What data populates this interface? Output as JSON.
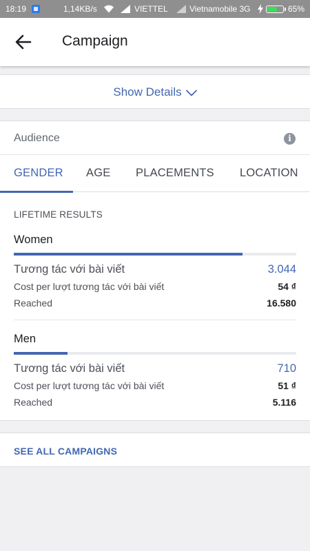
{
  "status_bar": {
    "time": "18:19",
    "speed": "1,14KB/s",
    "carrier1": "VIETTEL",
    "carrier2": "Vietnamobile 3G",
    "battery_pct": "65%",
    "battery_level": 0.65,
    "battery_color": "#3ddc5b"
  },
  "header": {
    "title": "Campaign",
    "back_icon": "arrow-left-icon"
  },
  "details": {
    "label": "Show Details",
    "icon": "chevron-down-icon"
  },
  "audience": {
    "title": "Audience",
    "info_icon": "info-icon",
    "tabs": [
      {
        "label": "GENDER",
        "active": true
      },
      {
        "label": "AGE",
        "active": false
      },
      {
        "label": "PLACEMENTS",
        "active": false
      },
      {
        "label": "LOCATION",
        "active": false
      }
    ],
    "section_label": "LIFETIME RESULTS",
    "groups": [
      {
        "name": "Women",
        "share": 0.81,
        "engagement_label": "Tương tác với bài viết",
        "engagement_value": "3.044",
        "cost_label": "Cost per lượt tương tác với bài viết",
        "cost_value": "54 ₫",
        "reached_label": "Reached",
        "reached_value": "16.580"
      },
      {
        "name": "Men",
        "share": 0.19,
        "engagement_label": "Tương tác với bài viết",
        "engagement_value": "710",
        "cost_label": "Cost per lượt tương tác với bài viết",
        "cost_value": "51 ₫",
        "reached_label": "Reached",
        "reached_value": "5.116"
      }
    ]
  },
  "footer": {
    "see_all_label": "SEE ALL CAMPAIGNS"
  },
  "colors": {
    "accent": "#4267b2",
    "background": "#f0f0f2"
  }
}
